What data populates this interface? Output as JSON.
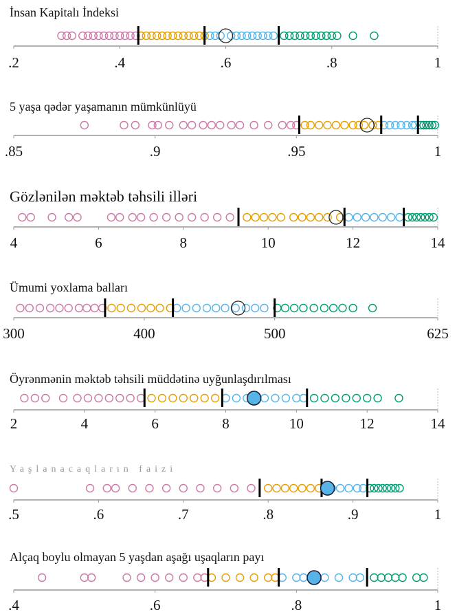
{
  "chart_data": [
    {
      "type": "strip",
      "title": "İnsan Kapitalı İndeksi",
      "xlim": [
        0.2,
        1
      ],
      "xticks": [
        {
          "value": 0.2,
          "label": ".2"
        },
        {
          "value": 0.4,
          "label": ".4"
        },
        {
          "value": 0.6,
          "label": ".6"
        },
        {
          "value": 0.8,
          "label": ".8"
        },
        1
      ],
      "markers": [
        0.435,
        0.56,
        0.7
      ],
      "highlight": 0.6,
      "highlight_style": "outline",
      "series": [
        {
          "color": "#cc79a7",
          "values": [
            0.29,
            0.3,
            0.31,
            0.33,
            0.34,
            0.35,
            0.36,
            0.37,
            0.38,
            0.39,
            0.4,
            0.41,
            0.42,
            0.43
          ]
        },
        {
          "color": "#e69f00",
          "values": [
            0.44,
            0.45,
            0.46,
            0.47,
            0.48,
            0.49,
            0.5,
            0.51,
            0.52,
            0.53,
            0.54,
            0.55,
            0.56
          ]
        },
        {
          "color": "#56b4e9",
          "values": [
            0.57,
            0.58,
            0.59,
            0.61,
            0.62,
            0.63,
            0.64,
            0.65,
            0.66,
            0.67,
            0.68,
            0.69
          ]
        },
        {
          "color": "#009e73",
          "values": [
            0.71,
            0.72,
            0.73,
            0.74,
            0.75,
            0.76,
            0.77,
            0.78,
            0.79,
            0.8,
            0.81,
            0.84,
            0.88
          ]
        }
      ]
    },
    {
      "type": "strip",
      "title": "5 yaşa qədər yaşamanın mümkünlüyü",
      "xlim": [
        0.85,
        1
      ],
      "xticks": [
        {
          "value": 0.85,
          "label": ".85"
        },
        {
          "value": 0.9,
          "label": ".9"
        },
        {
          "value": 0.95,
          "label": ".95"
        },
        1
      ],
      "markers": [
        0.951,
        0.98,
        0.993
      ],
      "highlight": 0.975,
      "highlight_style": "outline",
      "series": [
        {
          "color": "#cc79a7",
          "values": [
            0.875,
            0.889,
            0.893,
            0.899,
            0.901,
            0.905,
            0.91,
            0.913,
            0.917,
            0.92,
            0.923,
            0.927,
            0.93,
            0.935,
            0.94,
            0.945,
            0.948,
            0.95
          ]
        },
        {
          "color": "#e69f00",
          "values": [
            0.953,
            0.955,
            0.958,
            0.961,
            0.964,
            0.967,
            0.97,
            0.972,
            0.974,
            0.977,
            0.979
          ]
        },
        {
          "color": "#56b4e9",
          "values": [
            0.981,
            0.983,
            0.985,
            0.987,
            0.989,
            0.991,
            0.992
          ]
        },
        {
          "color": "#009e73",
          "values": [
            0.994,
            0.995,
            0.996,
            0.997,
            0.998,
            0.999
          ]
        }
      ]
    },
    {
      "type": "strip",
      "title": "Gözlənilən məktəb təhsili illəri",
      "xlim": [
        4,
        14
      ],
      "xticks": [
        4,
        6,
        8,
        10,
        12,
        14
      ],
      "markers": [
        9.3,
        11.8,
        13.2
      ],
      "highlight": 11.6,
      "highlight_style": "outline",
      "series": [
        {
          "color": "#cc79a7",
          "values": [
            4.2,
            4.4,
            4.9,
            5.3,
            5.5,
            6.3,
            6.5,
            6.8,
            7.0,
            7.3,
            7.6,
            7.9,
            8.2,
            8.5,
            8.8,
            9.1
          ]
        },
        {
          "color": "#e69f00",
          "values": [
            9.5,
            9.7,
            9.9,
            10.1,
            10.3,
            10.6,
            10.8,
            11.0,
            11.2,
            11.4,
            11.7
          ]
        },
        {
          "color": "#56b4e9",
          "values": [
            11.9,
            12.1,
            12.3,
            12.5,
            12.7,
            12.9,
            13.1
          ]
        },
        {
          "color": "#009e73",
          "values": [
            13.3,
            13.4,
            13.5,
            13.6,
            13.7,
            13.8,
            13.9
          ]
        }
      ]
    },
    {
      "type": "strip",
      "title": "Ümumi yoxlama balları",
      "xlim": [
        300,
        625
      ],
      "xticks": [
        300,
        400,
        500,
        625
      ],
      "markers": [
        370,
        422,
        500
      ],
      "highlight": 472,
      "highlight_style": "outline",
      "series": [
        {
          "color": "#cc79a7",
          "values": [
            305,
            312,
            320,
            328,
            335,
            342,
            350,
            356,
            362,
            368
          ]
        },
        {
          "color": "#e69f00",
          "values": [
            375,
            382,
            390,
            398,
            405,
            412,
            420
          ]
        },
        {
          "color": "#56b4e9",
          "values": [
            425,
            432,
            440,
            448,
            455,
            462,
            470,
            478,
            485,
            492
          ]
        },
        {
          "color": "#009e73",
          "values": [
            502,
            508,
            515,
            522,
            530,
            538,
            545,
            552,
            560,
            575
          ]
        }
      ]
    },
    {
      "type": "strip",
      "title": "Öyrənmənin məktəb təhsili müddətinə uyğunlaşdırılması",
      "xlim": [
        2,
        14
      ],
      "xticks": [
        2,
        4,
        6,
        8,
        10,
        12,
        14
      ],
      "markers": [
        5.7,
        7.9,
        10.3
      ],
      "highlight": 8.8,
      "highlight_style": "filled",
      "series": [
        {
          "color": "#cc79a7",
          "values": [
            2.3,
            2.6,
            2.9,
            3.4,
            3.8,
            4.1,
            4.4,
            4.7,
            5.0,
            5.3,
            5.6
          ]
        },
        {
          "color": "#e69f00",
          "values": [
            5.9,
            6.2,
            6.5,
            6.8,
            7.1,
            7.4,
            7.7
          ]
        },
        {
          "color": "#56b4e9",
          "values": [
            8.0,
            8.3,
            8.6,
            9.1,
            9.4,
            9.7,
            10.0,
            10.2
          ]
        },
        {
          "color": "#009e73",
          "values": [
            10.5,
            10.8,
            11.1,
            11.4,
            11.7,
            12.0,
            12.3,
            12.9
          ]
        }
      ]
    },
    {
      "type": "strip",
      "title": "Yaşlanacaqların faizi",
      "xlim": [
        0.5,
        1
      ],
      "xticks": [
        {
          "value": 0.5,
          "label": ".5"
        },
        {
          "value": 0.6,
          "label": ".6"
        },
        {
          "value": 0.7,
          "label": ".7"
        },
        {
          "value": 0.8,
          "label": ".8"
        },
        {
          "value": 0.9,
          "label": ".9"
        },
        1
      ],
      "markers": [
        0.79,
        0.863,
        0.917
      ],
      "highlight": 0.87,
      "highlight_style": "filled",
      "series": [
        {
          "color": "#cc79a7",
          "values": [
            0.5,
            0.59,
            0.61,
            0.62,
            0.64,
            0.66,
            0.68,
            0.7,
            0.72,
            0.74,
            0.76,
            0.78
          ]
        },
        {
          "color": "#e69f00",
          "values": [
            0.8,
            0.81,
            0.82,
            0.83,
            0.84,
            0.85,
            0.86
          ]
        },
        {
          "color": "#56b4e9",
          "values": [
            0.875,
            0.885,
            0.895,
            0.905,
            0.912
          ]
        },
        {
          "color": "#009e73",
          "values": [
            0.92,
            0.925,
            0.93,
            0.935,
            0.94,
            0.945,
            0.95,
            0.955
          ]
        }
      ]
    },
    {
      "type": "strip",
      "title": "Alçaq boylu olmayan 5 yaşdan aşağı uşaqların payı",
      "xlim": [
        0.4,
        1
      ],
      "xticks": [
        {
          "value": 0.4,
          "label": ".4"
        },
        {
          "value": 0.6,
          "label": ".6"
        },
        {
          "value": 0.8,
          "label": ".8"
        },
        1
      ],
      "markers": [
        0.675,
        0.775,
        0.9
      ],
      "highlight": 0.825,
      "highlight_style": "filled",
      "series": [
        {
          "color": "#cc79a7",
          "values": [
            0.44,
            0.5,
            0.51,
            0.56,
            0.58,
            0.6,
            0.62,
            0.64,
            0.66,
            0.67
          ]
        },
        {
          "color": "#e69f00",
          "values": [
            0.68,
            0.7,
            0.72,
            0.74,
            0.76,
            0.77
          ]
        },
        {
          "color": "#56b4e9",
          "values": [
            0.78,
            0.8,
            0.81,
            0.84,
            0.86,
            0.88,
            0.89
          ]
        },
        {
          "color": "#009e73",
          "values": [
            0.91,
            0.92,
            0.93,
            0.94,
            0.95,
            0.97,
            0.98
          ]
        }
      ]
    }
  ]
}
